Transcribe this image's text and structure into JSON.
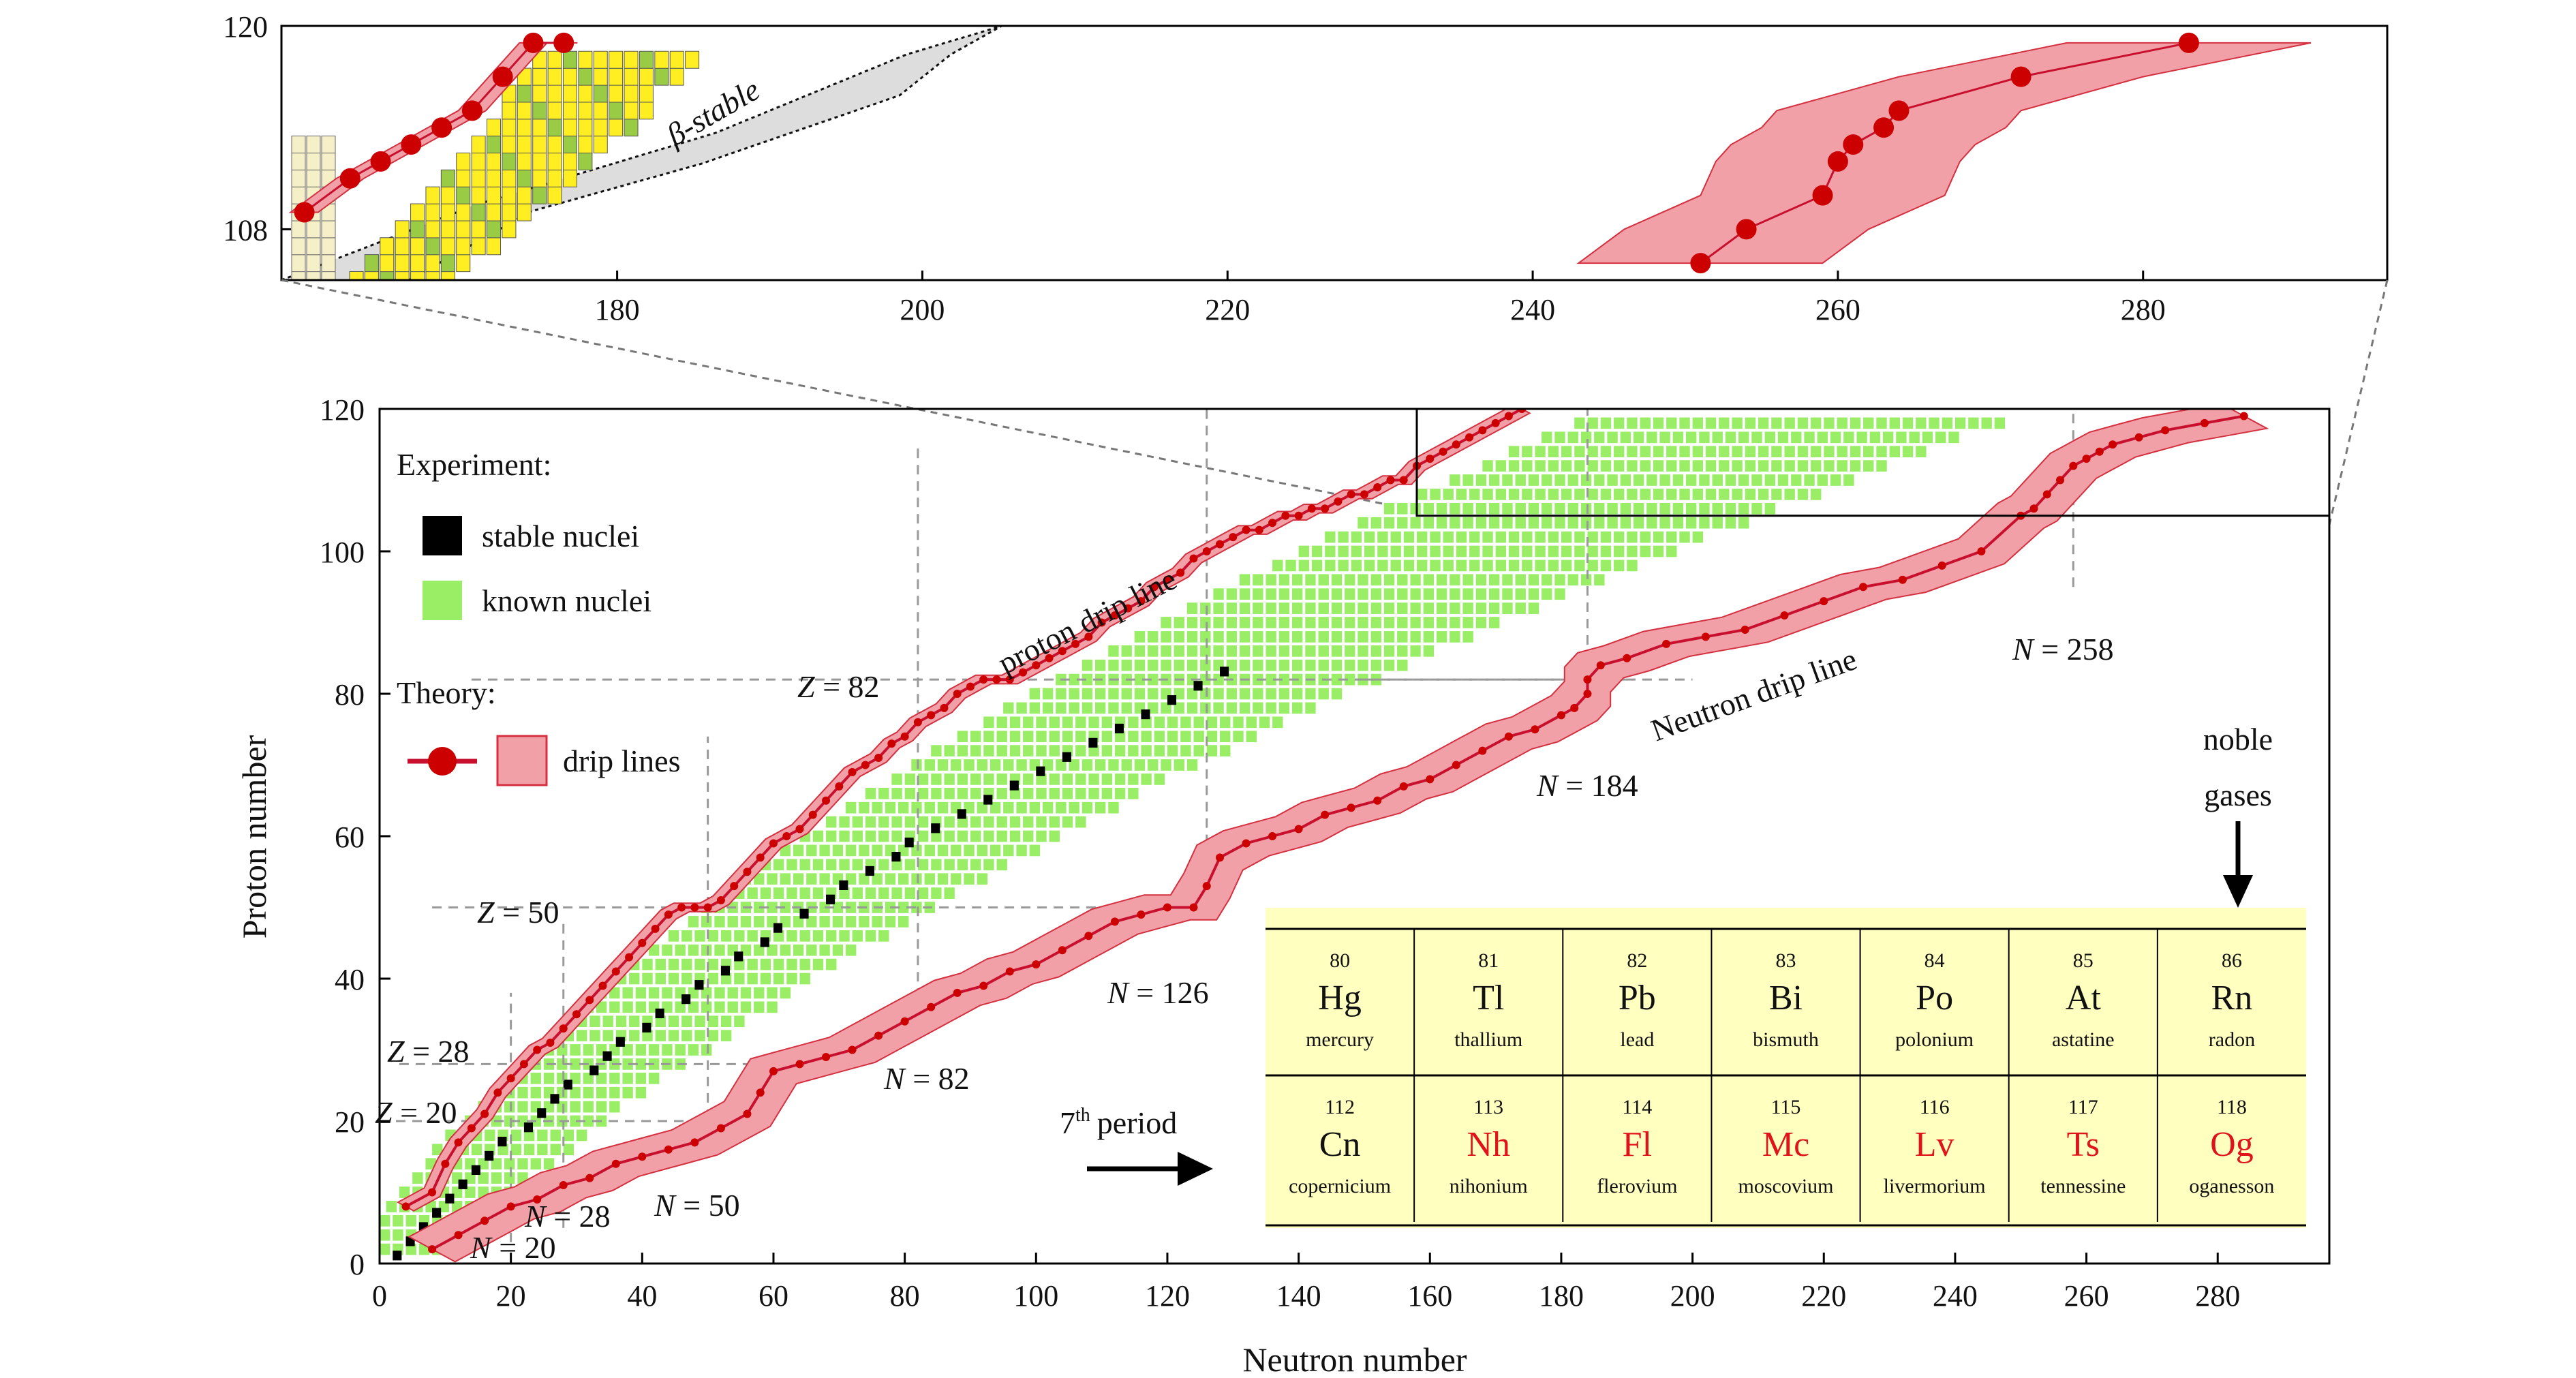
{
  "chart_data": [
    {
      "type": "scatter",
      "panel": "inset (zoom of upper-right region)",
      "xlim": [
        158,
        296
      ],
      "ylim": [
        105,
        120
      ],
      "x_ticks": [
        "180",
        "200",
        "220",
        "240",
        "260",
        "280"
      ],
      "y_ticks": [
        "108",
        "120"
      ],
      "annotations": [
        "β-stable"
      ],
      "series": [
        {
          "name": "proton drip line",
          "points": [
            [
              159.5,
              109
            ],
            [
              162.5,
              111
            ],
            [
              164.5,
              112
            ],
            [
              166.5,
              113
            ],
            [
              168.5,
              114
            ],
            [
              170.5,
              115
            ],
            [
              172.5,
              117
            ],
            [
              174.5,
              119
            ],
            [
              176.5,
              119
            ]
          ]
        },
        {
          "name": "neutron drip line",
          "points": [
            [
              251,
              106
            ],
            [
              254,
              108
            ],
            [
              259,
              110
            ],
            [
              260,
              112
            ],
            [
              261,
              113
            ],
            [
              263,
              114
            ],
            [
              264,
              115
            ],
            [
              272,
              117
            ],
            [
              283,
              119
            ]
          ]
        }
      ]
    },
    {
      "type": "scatter",
      "panel": "main",
      "xlabel": "Neutron number",
      "ylabel": "Proton number",
      "xlim": [
        0,
        297
      ],
      "ylim": [
        0,
        120
      ],
      "x_ticks": [
        "0",
        "20",
        "40",
        "60",
        "80",
        "100",
        "120",
        "140",
        "160",
        "180",
        "200",
        "220",
        "240",
        "260",
        "280"
      ],
      "y_ticks": [
        "0",
        "20",
        "40",
        "60",
        "80",
        "100",
        "120"
      ],
      "legend": {
        "experiment_title": "Experiment:",
        "stable": "stable nuclei",
        "known": "known nuclei",
        "theory_title": "Theory:",
        "drip": "drip lines"
      },
      "annotations": {
        "proton_drip": "proton drip line",
        "neutron_drip": "Neutron drip line",
        "period": "period",
        "period_num": "7",
        "period_sup": "th",
        "noble": "noble",
        "gases": "gases"
      },
      "magic_numbers": {
        "z": [
          {
            "z": "Z",
            "eq": " = ",
            "v": "20"
          },
          {
            "z": "Z",
            "eq": " = ",
            "v": "28"
          },
          {
            "z": "Z",
            "eq": " = ",
            "v": "50"
          },
          {
            "z": "Z",
            "eq": " = ",
            "v": "82"
          }
        ],
        "n": [
          {
            "z": "N",
            "eq": " = ",
            "v": "20"
          },
          {
            "z": "N",
            "eq": " = ",
            "v": "28"
          },
          {
            "z": "N",
            "eq": " = ",
            "v": "50"
          },
          {
            "z": "N",
            "eq": " = ",
            "v": "82"
          },
          {
            "z": "N",
            "eq": " = ",
            "v": "126"
          },
          {
            "z": "N",
            "eq": " = ",
            "v": "184"
          },
          {
            "z": "N",
            "eq": " = ",
            "v": "258"
          }
        ]
      },
      "series": [
        {
          "name": "proton drip line",
          "points": [
            [
              4,
              8
            ],
            [
              8,
              10
            ],
            [
              10,
              14
            ],
            [
              12,
              17
            ],
            [
              14,
              19
            ],
            [
              16,
              21
            ],
            [
              18,
              24
            ],
            [
              20,
              26
            ],
            [
              22,
              28
            ],
            [
              24,
              30
            ],
            [
              26,
              31
            ],
            [
              28,
              33
            ],
            [
              30,
              35
            ],
            [
              32,
              37
            ],
            [
              34,
              39
            ],
            [
              36,
              41
            ],
            [
              38,
              43
            ],
            [
              40,
              45
            ],
            [
              42,
              47
            ],
            [
              44,
              49
            ],
            [
              46,
              50
            ],
            [
              48,
              50
            ],
            [
              50,
              50
            ],
            [
              52,
              51
            ],
            [
              54,
              53
            ],
            [
              56,
              55
            ],
            [
              58,
              57
            ],
            [
              60,
              59
            ],
            [
              62,
              60
            ],
            [
              64,
              61
            ],
            [
              66,
              63
            ],
            [
              68,
              65
            ],
            [
              70,
              67
            ],
            [
              72,
              69
            ],
            [
              74,
              70
            ],
            [
              76,
              71
            ],
            [
              78,
              73
            ],
            [
              80,
              74
            ],
            [
              82,
              76
            ],
            [
              84,
              77
            ],
            [
              86,
              78
            ],
            [
              88,
              80
            ],
            [
              90,
              81
            ],
            [
              92,
              82
            ],
            [
              94,
              82
            ],
            [
              96,
              82
            ],
            [
              98,
              83
            ],
            [
              100,
              84
            ],
            [
              102,
              85
            ],
            [
              104,
              86
            ],
            [
              106,
              87
            ],
            [
              108,
              88
            ],
            [
              110,
              90
            ],
            [
              112,
              91
            ],
            [
              114,
              92
            ],
            [
              116,
              93
            ],
            [
              118,
              95
            ],
            [
              120,
              96
            ],
            [
              122,
              97
            ],
            [
              124,
              99
            ],
            [
              126,
              100
            ],
            [
              128,
              101
            ],
            [
              130,
              102
            ],
            [
              132,
              103
            ],
            [
              134,
              103
            ],
            [
              136,
              104
            ],
            [
              138,
              105
            ],
            [
              140,
              105
            ],
            [
              142,
              106
            ],
            [
              144,
              106
            ],
            [
              146,
              107
            ],
            [
              148,
              108
            ],
            [
              150,
              108
            ],
            [
              152,
              109
            ],
            [
              154,
              110
            ],
            [
              156,
              110
            ],
            [
              158,
              112
            ],
            [
              160,
              113
            ],
            [
              162,
              114
            ],
            [
              164,
              115
            ],
            [
              166,
              116
            ],
            [
              168,
              117
            ],
            [
              170,
              118
            ],
            [
              172,
              119
            ],
            [
              174,
              120
            ]
          ]
        },
        {
          "name": "neutron drip line",
          "points": [
            [
              8,
              2
            ],
            [
              12,
              4
            ],
            [
              16,
              6
            ],
            [
              20,
              8
            ],
            [
              24,
              9
            ],
            [
              28,
              11
            ],
            [
              32,
              12
            ],
            [
              36,
              14
            ],
            [
              40,
              15
            ],
            [
              44,
              16
            ],
            [
              48,
              17
            ],
            [
              52,
              19
            ],
            [
              56,
              21
            ],
            [
              58,
              24
            ],
            [
              60,
              27
            ],
            [
              64,
              28
            ],
            [
              68,
              29
            ],
            [
              72,
              30
            ],
            [
              76,
              32
            ],
            [
              80,
              34
            ],
            [
              84,
              36
            ],
            [
              88,
              38
            ],
            [
              92,
              39
            ],
            [
              96,
              41
            ],
            [
              100,
              42
            ],
            [
              104,
              44
            ],
            [
              108,
              46
            ],
            [
              112,
              48
            ],
            [
              116,
              49
            ],
            [
              120,
              50
            ],
            [
              124,
              50
            ],
            [
              126,
              53
            ],
            [
              128,
              57
            ],
            [
              132,
              59
            ],
            [
              136,
              60
            ],
            [
              140,
              61
            ],
            [
              144,
              63
            ],
            [
              148,
              64
            ],
            [
              152,
              65
            ],
            [
              156,
              67
            ],
            [
              160,
              68
            ],
            [
              164,
              70
            ],
            [
              168,
              72
            ],
            [
              172,
              74
            ],
            [
              176,
              75
            ],
            [
              180,
              77
            ],
            [
              182,
              78
            ],
            [
              184,
              80
            ],
            [
              184,
              82
            ],
            [
              186,
              84
            ],
            [
              190,
              85
            ],
            [
              196,
              87
            ],
            [
              202,
              88
            ],
            [
              208,
              89
            ],
            [
              214,
              91
            ],
            [
              220,
              93
            ],
            [
              226,
              95
            ],
            [
              232,
              96
            ],
            [
              238,
              98
            ],
            [
              244,
              100
            ],
            [
              250,
              105
            ],
            [
              252,
              106
            ],
            [
              254,
              108
            ],
            [
              256,
              110
            ],
            [
              258,
              112
            ],
            [
              260,
              113
            ],
            [
              262,
              114
            ],
            [
              264,
              115
            ],
            [
              268,
              116
            ],
            [
              272,
              117
            ],
            [
              278,
              118
            ],
            [
              284,
              119
            ]
          ]
        }
      ]
    }
  ],
  "periodic_table": {
    "row1": [
      {
        "n": "80",
        "s": "Hg",
        "name": "mercury",
        "red": false
      },
      {
        "n": "81",
        "s": "Tl",
        "name": "thallium",
        "red": false
      },
      {
        "n": "82",
        "s": "Pb",
        "name": "lead",
        "red": false
      },
      {
        "n": "83",
        "s": "Bi",
        "name": "bismuth",
        "red": false
      },
      {
        "n": "84",
        "s": "Po",
        "name": "polonium",
        "red": false
      },
      {
        "n": "85",
        "s": "At",
        "name": "astatine",
        "red": false
      },
      {
        "n": "86",
        "s": "Rn",
        "name": "radon",
        "red": false
      }
    ],
    "row2": [
      {
        "n": "112",
        "s": "Cn",
        "name": "copernicium",
        "red": false
      },
      {
        "n": "113",
        "s": "Nh",
        "name": "nihonium",
        "red": true
      },
      {
        "n": "114",
        "s": "Fl",
        "name": "flerovium",
        "red": true
      },
      {
        "n": "115",
        "s": "Mc",
        "name": "moscovium",
        "red": true
      },
      {
        "n": "116",
        "s": "Lv",
        "name": "livermorium",
        "red": true
      },
      {
        "n": "117",
        "s": "Ts",
        "name": "tennessine",
        "red": true
      },
      {
        "n": "118",
        "s": "Og",
        "name": "oganesson",
        "red": true
      }
    ]
  },
  "colors": {
    "drip_line": "#c8102e",
    "drip_band": "#f0a0a6",
    "known": "#99ee66",
    "stable": "#000000",
    "beta_stable": "#dddddd",
    "table_bg": "#ffffc0",
    "new_element": "#e0121a"
  }
}
